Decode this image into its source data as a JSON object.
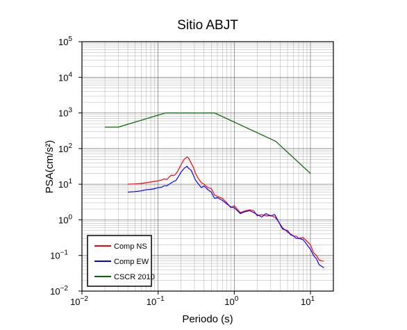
{
  "chart_data": {
    "type": "line",
    "title": "Sitio ABJT",
    "xlabel": "Periodo (s)",
    "ylabel": "PSA(cm/s²)",
    "xscale": "log",
    "yscale": "log",
    "xlim": [
      0.01,
      20
    ],
    "ylim": [
      0.01,
      100000
    ],
    "x_ticks": [
      {
        "value": 0.01,
        "base": "10",
        "exp": "−2"
      },
      {
        "value": 0.1,
        "base": "10",
        "exp": "−1"
      },
      {
        "value": 1,
        "base": "10",
        "exp": "0"
      },
      {
        "value": 10,
        "base": "10",
        "exp": "1"
      }
    ],
    "y_ticks": [
      {
        "value": 0.01,
        "base": "10",
        "exp": "−2"
      },
      {
        "value": 0.1,
        "base": "10",
        "exp": "−1"
      },
      {
        "value": 1,
        "base": "10",
        "exp": "0"
      },
      {
        "value": 10,
        "base": "10",
        "exp": "1"
      },
      {
        "value": 100,
        "base": "10",
        "exp": "2"
      },
      {
        "value": 1000,
        "base": "10",
        "exp": "3"
      },
      {
        "value": 10000,
        "base": "10",
        "exp": "4"
      },
      {
        "value": 100000,
        "base": "10",
        "exp": "5"
      }
    ],
    "grid": true,
    "legend_position": "bottom-left",
    "series": [
      {
        "name": "Comp NS",
        "color": "#ff0000",
        "x": [
          0.04,
          0.05,
          0.06,
          0.07,
          0.08,
          0.09,
          0.1,
          0.11,
          0.12,
          0.13,
          0.14,
          0.15,
          0.16,
          0.17,
          0.18,
          0.19,
          0.2,
          0.22,
          0.24,
          0.25,
          0.27,
          0.29,
          0.31,
          0.34,
          0.37,
          0.4,
          0.45,
          0.5,
          0.55,
          0.6,
          0.7,
          0.8,
          0.9,
          1.0,
          1.2,
          1.4,
          1.6,
          1.8,
          2.0,
          2.3,
          2.6,
          3.0,
          3.4,
          3.8,
          4.3,
          5.0,
          5.5,
          6.0,
          6.5,
          7.0,
          8.0,
          9.0,
          10.0,
          11.0,
          12.0,
          13.0,
          14.0,
          15.0
        ],
        "y": [
          10,
          10.2,
          10.5,
          11,
          11.5,
          12,
          12.5,
          13,
          14,
          13.5,
          16,
          18,
          17.5,
          19,
          23,
          28,
          35,
          50,
          58,
          55,
          40,
          30,
          20,
          14,
          11,
          10,
          8,
          7.5,
          5,
          4.5,
          4,
          3,
          2.2,
          2.5,
          1.6,
          1.8,
          1.9,
          1.8,
          1.3,
          1.4,
          1.3,
          1.3,
          1.2,
          0.9,
          0.6,
          0.45,
          0.4,
          0.35,
          0.35,
          0.3,
          0.32,
          0.25,
          0.2,
          0.12,
          0.1,
          0.075,
          0.07,
          0.07
        ]
      },
      {
        "name": "Comp EW",
        "color": "#0000ff",
        "x": [
          0.04,
          0.05,
          0.06,
          0.07,
          0.08,
          0.09,
          0.1,
          0.11,
          0.12,
          0.13,
          0.14,
          0.15,
          0.16,
          0.17,
          0.18,
          0.19,
          0.2,
          0.22,
          0.24,
          0.25,
          0.27,
          0.29,
          0.31,
          0.34,
          0.37,
          0.4,
          0.45,
          0.5,
          0.55,
          0.6,
          0.7,
          0.8,
          0.9,
          1.0,
          1.2,
          1.4,
          1.6,
          1.8,
          2.0,
          2.3,
          2.6,
          3.0,
          3.4,
          3.8,
          4.3,
          5.0,
          5.5,
          6.0,
          6.5,
          7.0,
          8.0,
          9.0,
          10.0,
          11.0,
          12.0,
          13.0,
          14.0,
          15.0
        ],
        "y": [
          6,
          6.2,
          6.5,
          7,
          7.2,
          7.5,
          8,
          8.2,
          9,
          9,
          10,
          11,
          12,
          12.5,
          15,
          18,
          22,
          28,
          32,
          28,
          25,
          18,
          13,
          10,
          8,
          9,
          7,
          6,
          4,
          4.2,
          3.5,
          2.8,
          2.3,
          2.2,
          1.5,
          1.7,
          1.8,
          1.6,
          1.4,
          1.2,
          1.5,
          1.3,
          1.4,
          0.9,
          0.55,
          0.5,
          0.38,
          0.35,
          0.3,
          0.3,
          0.28,
          0.2,
          0.15,
          0.1,
          0.08,
          0.055,
          0.05,
          0.045
        ]
      },
      {
        "name": "CSCR 2010",
        "color": "#006600",
        "x": [
          0.02,
          0.03,
          0.125,
          0.55,
          3.5,
          10
        ],
        "y": [
          400,
          400,
          1000,
          1000,
          160,
          20
        ]
      }
    ]
  }
}
